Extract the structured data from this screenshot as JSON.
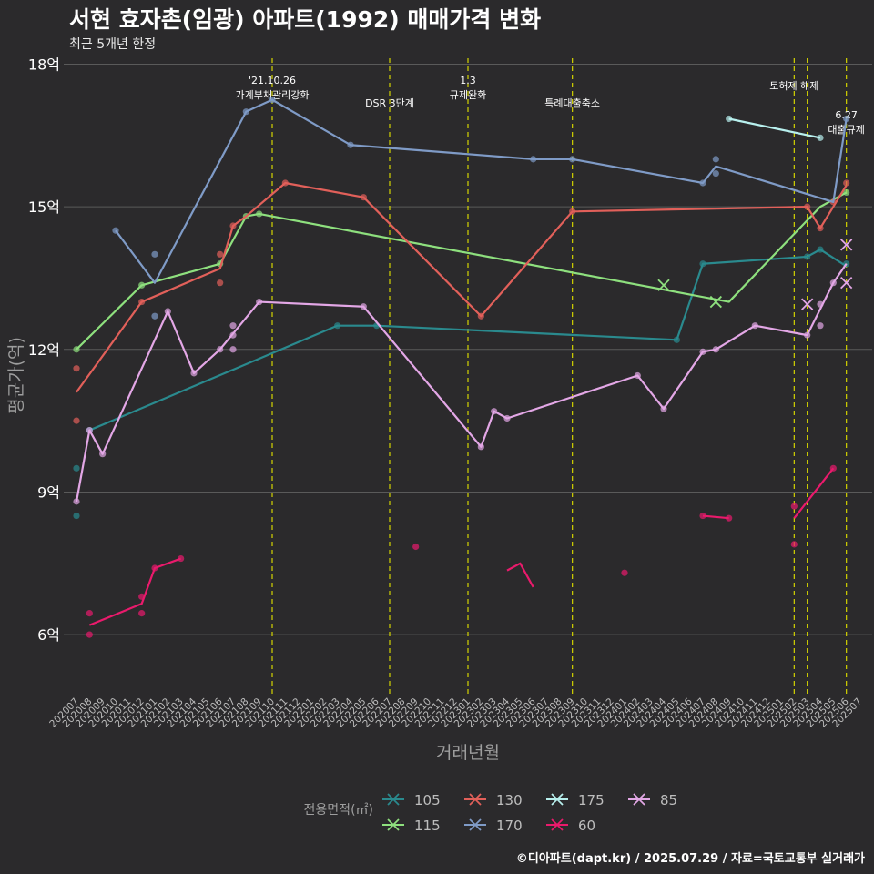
{
  "title": "서현 효자촌(임광) 아파트(1992) 매매가격 변화",
  "subtitle": "최근 5개년 한정",
  "credit": "©디아파트(dapt.kr) / 2025.07.29 / 자료=국토교통부 실거래가",
  "colors": {
    "background": "#2b2a2c",
    "grid": "#5a5a5a",
    "event_line": "#d4d400",
    "axis_text": "#bdbdbd"
  },
  "chart_data": {
    "type": "line",
    "xlabel": "거래년월",
    "ylabel": "평균가(억)",
    "ylim": [
      4.7,
      18.2
    ],
    "yticks": [
      6,
      9,
      12,
      15,
      18
    ],
    "ytick_labels": [
      "6억",
      "9억",
      "12억",
      "15억",
      "18억"
    ],
    "x_start": "2020-07",
    "x_end": "2025-07",
    "xtick_labels": [
      "202007",
      "202008",
      "202009",
      "202010",
      "202011",
      "202012",
      "202101",
      "202102",
      "202103",
      "202104",
      "202105",
      "202106",
      "202107",
      "202108",
      "202109",
      "202110",
      "202111",
      "202112",
      "202201",
      "202202",
      "202203",
      "202204",
      "202205",
      "202206",
      "202207",
      "202208",
      "202209",
      "202210",
      "202211",
      "202212",
      "202301",
      "202302",
      "202303",
      "202304",
      "202305",
      "202306",
      "202307",
      "202308",
      "202309",
      "202310",
      "202311",
      "202312",
      "202401",
      "202402",
      "202403",
      "202404",
      "202405",
      "202406",
      "202407",
      "202408",
      "202409",
      "202410",
      "202411",
      "202412",
      "202501",
      "202502",
      "202503",
      "202504",
      "202505",
      "202506",
      "202507"
    ],
    "legend_title": "전용면적(㎡)",
    "legend_position": "bottom",
    "events": [
      {
        "x": 15.0,
        "label": "'21.10.26\n가계부채관리강화",
        "level": 1
      },
      {
        "x": 24.0,
        "label": "DSR 3단계",
        "level": 2
      },
      {
        "x": 30.0,
        "label": "1.3\n규제완화",
        "level": 1
      },
      {
        "x": 38.0,
        "label": "특례대출축소",
        "level": 2
      },
      {
        "x": 55.0,
        "label": "토허제 해제",
        "level": 0
      },
      {
        "x": 56.0,
        "label": "",
        "level": 0
      },
      {
        "x": 59.0,
        "label": "6.27\n대출규제",
        "level": 3
      }
    ],
    "series": [
      {
        "name": "105",
        "color": "#2a8a8e",
        "line": [
          [
            1,
            10.3
          ],
          [
            20,
            12.5
          ],
          [
            23,
            12.5
          ],
          [
            46,
            12.2
          ],
          [
            48,
            13.8
          ],
          [
            56,
            13.95
          ],
          [
            57,
            14.1
          ],
          [
            59,
            13.75
          ]
        ],
        "points": [
          [
            0,
            9.5
          ],
          [
            0,
            8.5
          ],
          [
            1,
            10.3
          ],
          [
            20,
            12.5
          ],
          [
            23,
            12.5
          ],
          [
            46,
            12.2
          ],
          [
            48,
            13.8
          ],
          [
            56,
            13.95
          ],
          [
            57,
            14.1
          ],
          [
            59,
            13.8
          ]
        ],
        "crosses": []
      },
      {
        "name": "115",
        "color": "#8ee07e",
        "line": [
          [
            0,
            12.0
          ],
          [
            5,
            13.35
          ],
          [
            11,
            13.8
          ],
          [
            13,
            14.8
          ],
          [
            14,
            14.85
          ],
          [
            50,
            13.0
          ],
          [
            57,
            15.0
          ],
          [
            59,
            15.3
          ]
        ],
        "points": [
          [
            0,
            12.0
          ],
          [
            5,
            13.35
          ],
          [
            11,
            13.8
          ],
          [
            13,
            14.8
          ],
          [
            14,
            14.85
          ],
          [
            59,
            15.3
          ]
        ],
        "crosses": [
          [
            45,
            13.35
          ],
          [
            49,
            13.0
          ]
        ]
      },
      {
        "name": "130",
        "color": "#e2605a",
        "line": [
          [
            0,
            11.1
          ],
          [
            5,
            13.0
          ],
          [
            11,
            13.7
          ],
          [
            12,
            14.6
          ],
          [
            13,
            14.8
          ],
          [
            16,
            15.5
          ],
          [
            22,
            15.2
          ],
          [
            31,
            12.7
          ],
          [
            38,
            14.9
          ],
          [
            56,
            15.0
          ],
          [
            57,
            14.55
          ],
          [
            58,
            15.0
          ],
          [
            59,
            15.45
          ]
        ],
        "points": [
          [
            0,
            11.6
          ],
          [
            0,
            10.5
          ],
          [
            5,
            13.0
          ],
          [
            11,
            14.0
          ],
          [
            11,
            13.4
          ],
          [
            12,
            14.6
          ],
          [
            16,
            15.5
          ],
          [
            22,
            15.2
          ],
          [
            31,
            12.7
          ],
          [
            38,
            14.9
          ],
          [
            56,
            15.0
          ],
          [
            57,
            14.55
          ],
          [
            58,
            15.1
          ],
          [
            59,
            15.5
          ]
        ],
        "crosses": []
      },
      {
        "name": "170",
        "color": "#7f9bc7",
        "line": [
          [
            3,
            14.5
          ],
          [
            6,
            13.4
          ],
          [
            13,
            17.0
          ],
          [
            15,
            17.25
          ],
          [
            21,
            16.3
          ],
          [
            35,
            16.0
          ],
          [
            38,
            16.0
          ],
          [
            48,
            15.5
          ],
          [
            49,
            15.85
          ],
          [
            58,
            15.1
          ],
          [
            59,
            16.85
          ]
        ],
        "points": [
          [
            3,
            14.5
          ],
          [
            6,
            14.0
          ],
          [
            6,
            12.7
          ],
          [
            13,
            17.0
          ],
          [
            15,
            17.25
          ],
          [
            21,
            16.3
          ],
          [
            35,
            16.0
          ],
          [
            38,
            16.0
          ],
          [
            48,
            15.5
          ],
          [
            49,
            16.0
          ],
          [
            49,
            15.7
          ],
          [
            59,
            16.85
          ]
        ],
        "crosses": []
      },
      {
        "name": "175",
        "color": "#b8f0ee",
        "line": [
          [
            50,
            16.85
          ],
          [
            57,
            16.45
          ]
        ],
        "points": [
          [
            50,
            16.85
          ],
          [
            57,
            16.45
          ]
        ],
        "crosses": []
      },
      {
        "name": "60",
        "color": "#ea1a6c",
        "line": [
          [
            1,
            6.2
          ],
          [
            5,
            6.65
          ],
          [
            6,
            7.4
          ],
          [
            8,
            7.6
          ]
        ],
        "points": [
          [
            1,
            6.45
          ],
          [
            1,
            6.0
          ],
          [
            5,
            6.8
          ],
          [
            5,
            6.45
          ],
          [
            6,
            7.4
          ],
          [
            8,
            7.6
          ],
          [
            26,
            7.85
          ],
          [
            42,
            7.3
          ],
          [
            48,
            8.5
          ],
          [
            50,
            8.45
          ],
          [
            55,
            8.7
          ],
          [
            55,
            7.9
          ],
          [
            58,
            9.5
          ]
        ],
        "extra_lines": [
          [
            [
              33,
              7.35
            ],
            [
              34,
              7.5
            ],
            [
              35,
              7.0
            ]
          ],
          [
            [
              48,
              8.5
            ],
            [
              50,
              8.45
            ]
          ],
          [
            [
              55,
              8.45
            ],
            [
              58,
              9.5
            ]
          ]
        ],
        "crosses": []
      },
      {
        "name": "85",
        "color": "#e3a7e6",
        "line": [
          [
            0,
            8.8
          ],
          [
            1,
            10.3
          ],
          [
            2,
            9.8
          ],
          [
            7,
            12.8
          ],
          [
            9,
            11.5
          ],
          [
            11,
            12.0
          ],
          [
            14,
            13.0
          ],
          [
            22,
            12.9
          ],
          [
            31,
            9.95
          ],
          [
            32,
            10.7
          ],
          [
            33,
            10.55
          ],
          [
            43,
            11.45
          ],
          [
            45,
            10.75
          ],
          [
            48,
            11.95
          ],
          [
            49,
            12.0
          ],
          [
            52,
            12.5
          ],
          [
            56,
            12.3
          ],
          [
            58,
            13.4
          ],
          [
            59,
            13.8
          ]
        ],
        "points": [
          [
            0,
            8.8
          ],
          [
            1,
            10.3
          ],
          [
            2,
            9.8
          ],
          [
            7,
            12.8
          ],
          [
            9,
            11.5
          ],
          [
            11,
            12.0
          ],
          [
            12,
            12.5
          ],
          [
            12,
            12.3
          ],
          [
            12,
            12.0
          ],
          [
            14,
            13.0
          ],
          [
            22,
            12.9
          ],
          [
            31,
            9.95
          ],
          [
            32,
            10.7
          ],
          [
            33,
            10.55
          ],
          [
            43,
            11.45
          ],
          [
            45,
            10.75
          ],
          [
            48,
            11.95
          ],
          [
            49,
            12.0
          ],
          [
            52,
            12.5
          ],
          [
            56,
            12.3
          ],
          [
            57,
            12.95
          ],
          [
            57,
            12.5
          ],
          [
            58,
            13.4
          ]
        ],
        "crosses": [
          [
            56,
            12.95
          ],
          [
            59,
            14.2
          ],
          [
            59,
            13.4
          ]
        ]
      }
    ]
  }
}
